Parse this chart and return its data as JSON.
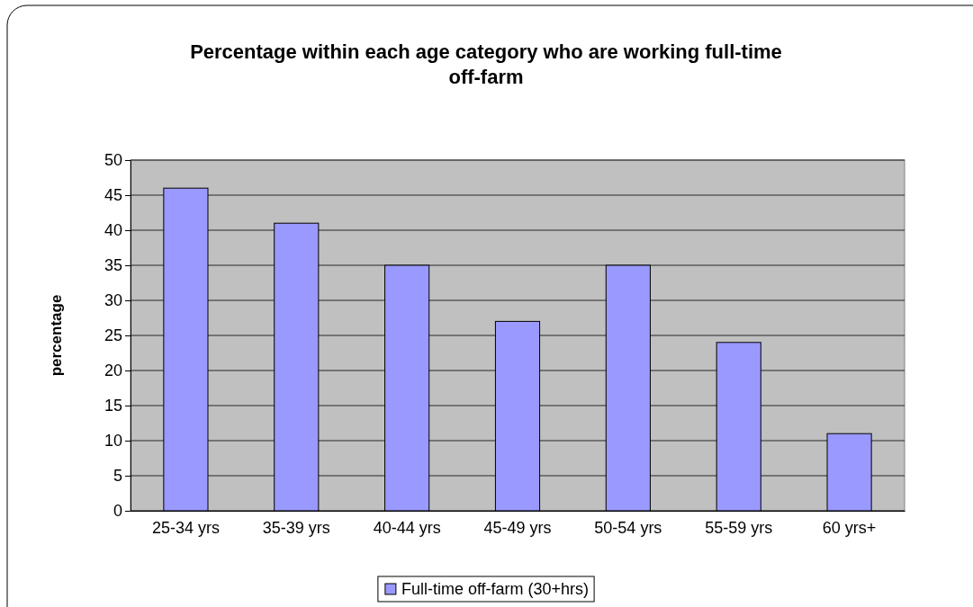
{
  "chart_data": {
    "type": "bar",
    "title": "Percentage within each age category who are working full-time off-farm",
    "ylabel": "percentage",
    "categories": [
      "25-34 yrs",
      "35-39 yrs",
      "40-44 yrs",
      "45-49 yrs",
      "50-54 yrs",
      "55-59 yrs",
      "60 yrs+"
    ],
    "series": [
      {
        "name": "Full-time off-farm (30+hrs)",
        "color": "#9999ff",
        "values": [
          46,
          41,
          35,
          27,
          35,
          24,
          11
        ]
      }
    ],
    "ylim": [
      0,
      50
    ],
    "yticks": [
      0,
      5,
      10,
      15,
      20,
      25,
      30,
      35,
      40,
      45,
      50
    ],
    "grid": "y",
    "legend": "bottom"
  }
}
